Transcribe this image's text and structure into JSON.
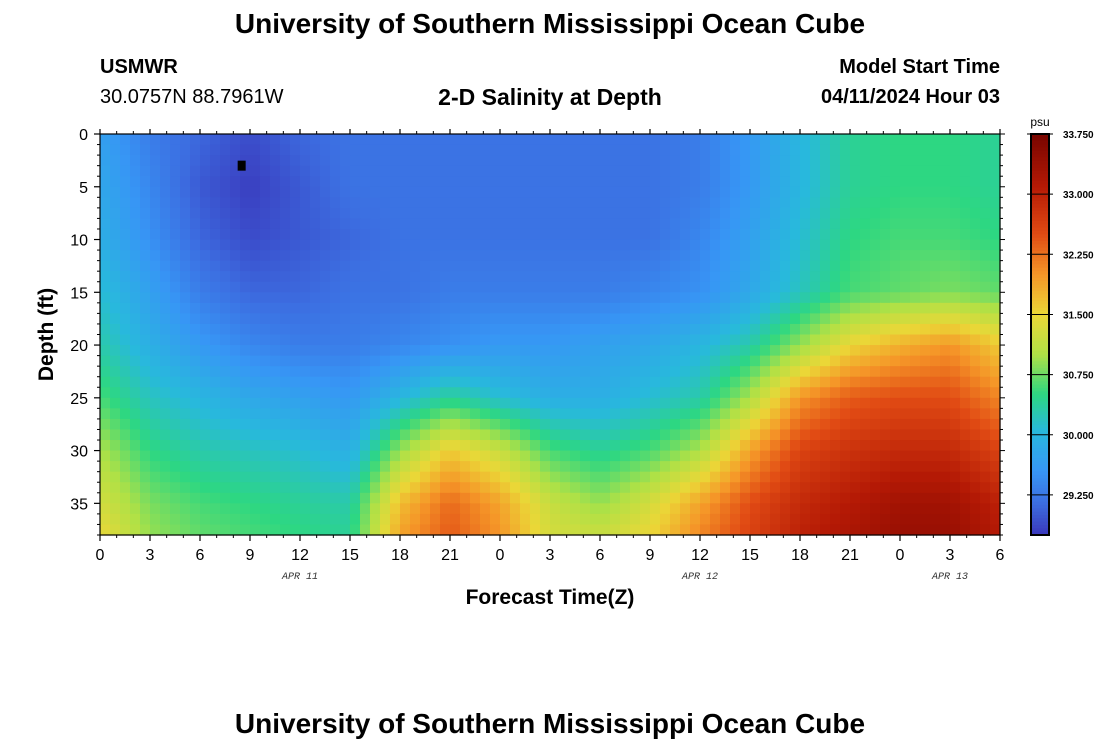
{
  "header": {
    "title": "University of Southern Mississippi Ocean Cube",
    "station": "USMWR",
    "coordinates": "30.0757N  88.7961W",
    "subtitle": "2-D Salinity at Depth",
    "model_start_label": "Model Start Time",
    "model_start_value": "04/11/2024 Hour 03"
  },
  "footer": {
    "title": "University of Southern Mississippi Ocean Cube"
  },
  "chart_data": {
    "type": "heatmap",
    "title": "2-D Salinity at Depth",
    "xlabel": "Forecast Time(Z)",
    "ylabel": "Depth (ft)",
    "x_range_hours": [
      0,
      54
    ],
    "y_range_ft": [
      0,
      38
    ],
    "y_ticks": [
      0,
      5,
      10,
      15,
      20,
      25,
      30,
      35
    ],
    "x_tick_labels": [
      "0",
      "3",
      "6",
      "9",
      "12",
      "15",
      "18",
      "21",
      "0",
      "3",
      "6",
      "9",
      "12",
      "15",
      "18",
      "21",
      "0",
      "3",
      "6"
    ],
    "date_labels": [
      {
        "text": "APR 11",
        "hour": 12
      },
      {
        "text": "APR 12",
        "hour": 36
      },
      {
        "text": "APR 13",
        "hour": 51
      }
    ],
    "colorbar": {
      "unit": "psu",
      "min": 28.75,
      "max": 33.75,
      "tick_values": [
        29.25,
        30.0,
        30.75,
        31.5,
        32.25,
        33.0,
        33.75
      ],
      "tick_labels": [
        "29.250",
        "30.000",
        "30.750",
        "31.500",
        "32.250",
        "33.000",
        "33.750"
      ]
    },
    "salinity_psu": {
      "hours": [
        0,
        3,
        6,
        9,
        12,
        15,
        18,
        21,
        24,
        27,
        30,
        33,
        36,
        39,
        42,
        45,
        48,
        51,
        54
      ],
      "depths": [
        0,
        5,
        10,
        15,
        20,
        25,
        30,
        35,
        38
      ],
      "values": [
        [
          29.7,
          29.3,
          29.1,
          28.9,
          29.1,
          29.2,
          29.2,
          29.2,
          29.2,
          29.2,
          29.2,
          29.2,
          29.3,
          29.6,
          30.0,
          30.4,
          30.5,
          30.5,
          30.4
        ],
        [
          29.8,
          29.4,
          29.0,
          28.8,
          29.0,
          29.2,
          29.2,
          29.2,
          29.2,
          29.2,
          29.2,
          29.2,
          29.3,
          29.6,
          30.0,
          30.4,
          30.5,
          30.5,
          30.4
        ],
        [
          29.9,
          29.5,
          29.1,
          28.9,
          29.0,
          29.1,
          29.2,
          29.2,
          29.2,
          29.2,
          29.2,
          29.2,
          29.4,
          29.7,
          30.1,
          30.5,
          30.6,
          30.6,
          30.5
        ],
        [
          30.1,
          29.7,
          29.3,
          29.1,
          29.1,
          29.2,
          29.2,
          29.3,
          29.3,
          29.3,
          29.3,
          29.4,
          29.5,
          29.8,
          30.2,
          30.6,
          30.7,
          30.8,
          30.7
        ],
        [
          30.3,
          29.9,
          29.6,
          29.4,
          29.3,
          29.3,
          29.4,
          29.5,
          29.6,
          29.6,
          29.7,
          29.8,
          30.0,
          30.3,
          30.9,
          31.5,
          31.8,
          32.0,
          31.6
        ],
        [
          30.6,
          30.2,
          30.0,
          29.8,
          29.7,
          29.6,
          30.0,
          30.4,
          30.1,
          29.9,
          29.9,
          30.1,
          30.3,
          31.0,
          32.0,
          32.4,
          32.5,
          32.5,
          32.1
        ],
        [
          31.0,
          30.5,
          30.3,
          30.2,
          30.1,
          29.9,
          30.9,
          31.6,
          31.2,
          30.6,
          30.4,
          30.6,
          31.0,
          31.9,
          32.6,
          32.8,
          32.9,
          32.9,
          32.6
        ],
        [
          31.3,
          30.8,
          30.6,
          30.5,
          30.4,
          30.3,
          31.7,
          32.3,
          31.9,
          31.2,
          30.9,
          31.3,
          31.9,
          32.5,
          32.9,
          33.1,
          33.3,
          33.3,
          33.0
        ],
        [
          31.5,
          30.9,
          30.7,
          30.6,
          30.5,
          30.4,
          31.9,
          32.4,
          32.0,
          31.3,
          31.2,
          31.5,
          32.1,
          32.6,
          33.0,
          33.2,
          33.4,
          33.4,
          33.1
        ]
      ],
      "marker": {
        "hour": 8.5,
        "depth": 3,
        "value": 28.75
      }
    }
  }
}
